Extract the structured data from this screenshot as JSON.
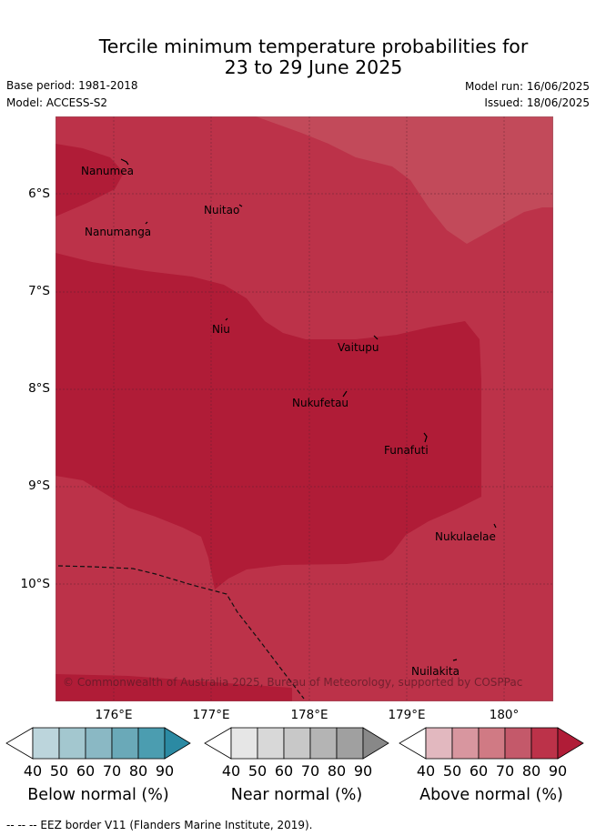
{
  "header": {
    "title_line1": "Tercile minimum temperature probabilities for",
    "title_line2": "23 to 29 June 2025",
    "base_period": "Base period: 1981-2018",
    "model": "Model: ACCESS-S2",
    "model_run": "Model run: 16/06/2025",
    "issued": "Issued: 18/06/2025"
  },
  "map": {
    "lat_labels": [
      "6°S",
      "7°S",
      "8°S",
      "9°S",
      "10°S"
    ],
    "lon_labels": [
      "176°E",
      "177°E",
      "178°E",
      "179°E",
      "180°"
    ],
    "places": [
      "Nanumea",
      "Nuitao",
      "Nanumanga",
      "Niu",
      "Vaitupu",
      "Nukufetau",
      "Funafuti",
      "Nukulaelae",
      "Nuilakita"
    ],
    "copyright": "© Commonwealth of Australia 2025, Bureau of Meteorology, supported by COSPPac",
    "colors": {
      "above_60": "#c24a5a",
      "above_70": "#bc3249",
      "above_80": "#b01c37"
    }
  },
  "colorbars": [
    {
      "title": "Below normal (%)",
      "ticks": [
        "40",
        "50",
        "60",
        "70",
        "80",
        "90"
      ],
      "colors": [
        "#ffffff",
        "#bcd5dc",
        "#a3c7cf",
        "#8ab8c4",
        "#6aa9b8",
        "#4b9db0",
        "#2b8aa3"
      ]
    },
    {
      "title": "Near normal (%)",
      "ticks": [
        "40",
        "50",
        "60",
        "70",
        "80",
        "90"
      ],
      "colors": [
        "#ffffff",
        "#e6e6e6",
        "#d8d8d8",
        "#c8c8c8",
        "#b4b4b4",
        "#a0a0a0",
        "#888888"
      ]
    },
    {
      "title": "Above normal (%)",
      "ticks": [
        "40",
        "50",
        "60",
        "70",
        "80",
        "90"
      ],
      "colors": [
        "#ffffff",
        "#e2b8bf",
        "#d8969f",
        "#d07a84",
        "#c4596a",
        "#bc3249",
        "#b01c37"
      ]
    }
  ],
  "footnote": "--  --  -- EEZ border V11 (Flanders Marine Institute, 2019)."
}
